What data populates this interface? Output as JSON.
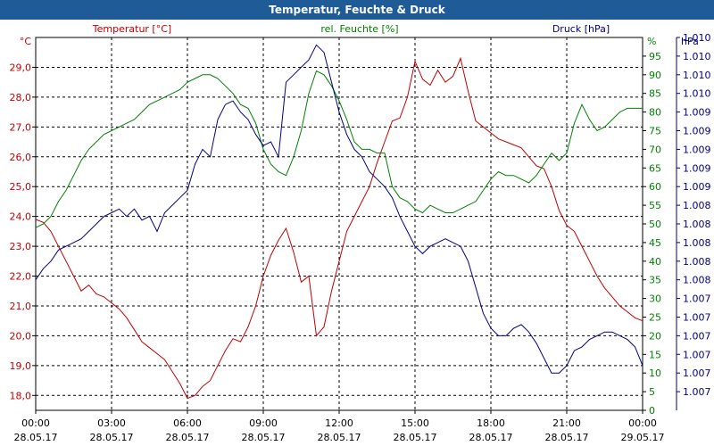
{
  "title": "Temperatur, Feuchte & Druck",
  "chart_data": {
    "type": "line",
    "title": "Temperatur, Feuchte & Druck",
    "x_ticks": [
      {
        "time": "00:00",
        "date": "28.05.17"
      },
      {
        "time": "03:00",
        "date": "28.05.17"
      },
      {
        "time": "06:00",
        "date": "28.05.17"
      },
      {
        "time": "09:00",
        "date": "28.05.17"
      },
      {
        "time": "12:00",
        "date": "28.05.17"
      },
      {
        "time": "15:00",
        "date": "28.05.17"
      },
      {
        "time": "18:00",
        "date": "28.05.17"
      },
      {
        "time": "21:00",
        "date": "28.05.17"
      },
      {
        "time": "00:00",
        "date": "29.05.17"
      }
    ],
    "x_range_hours": [
      0,
      24
    ],
    "axes": {
      "temperature": {
        "unit": "°C",
        "label": "Temperatur [°C]",
        "color": "#c00000",
        "range": [
          17.5,
          30.0
        ],
        "ticks": [
          "18,0",
          "19,0",
          "20,0",
          "21,0",
          "22,0",
          "23,0",
          "24,0",
          "25,0",
          "26,0",
          "27,0",
          "28,0",
          "29,0"
        ]
      },
      "humidity": {
        "unit": "%",
        "label": "rel. Feuchte [%]",
        "color": "#008000",
        "range": [
          0,
          100
        ],
        "ticks": [
          "0",
          "5",
          "10",
          "15",
          "20",
          "25",
          "30",
          "35",
          "40",
          "45",
          "50",
          "55",
          "60",
          "65",
          "70",
          "75",
          "80",
          "85",
          "90",
          "95"
        ]
      },
      "pressure": {
        "unit": "hPa",
        "label": "Druck [hPa]",
        "color": "#000080",
        "range": [
          0,
          100
        ],
        "ticks": [
          "1.007",
          "1.007",
          "1.007",
          "1.007",
          "1.007",
          "1.007",
          "1.008",
          "1.008",
          "1.008",
          "1.008",
          "1.008",
          "1.009",
          "1.009",
          "1.009",
          "1.009",
          "1.009",
          "1.010",
          "1.010",
          "1.010",
          "1.010"
        ]
      }
    },
    "grid": true,
    "series": [
      {
        "name": "Temperatur [°C]",
        "axis": "temperature",
        "color": "#c00000",
        "x": [
          0,
          0.3,
          0.6,
          0.9,
          1.2,
          1.5,
          1.8,
          2.1,
          2.4,
          2.7,
          3,
          3.3,
          3.6,
          3.9,
          4.2,
          4.5,
          4.8,
          5.1,
          5.4,
          5.7,
          6,
          6.3,
          6.6,
          6.9,
          7.2,
          7.5,
          7.8,
          8.1,
          8.4,
          8.7,
          9,
          9.3,
          9.6,
          9.9,
          10.2,
          10.5,
          10.8,
          11.1,
          11.4,
          11.7,
          12,
          12.3,
          12.6,
          12.9,
          13.2,
          13.5,
          13.8,
          14.1,
          14.4,
          14.7,
          15,
          15.3,
          15.6,
          15.9,
          16.2,
          16.5,
          16.8,
          17.1,
          17.4,
          17.7,
          18,
          18.3,
          18.6,
          18.9,
          19.2,
          19.5,
          19.8,
          20.1,
          20.4,
          20.7,
          21,
          21.3,
          21.6,
          21.9,
          22.2,
          22.5,
          22.8,
          23.1,
          23.4,
          23.7,
          24
        ],
        "y": [
          23.9,
          23.8,
          23.5,
          23.0,
          22.5,
          22.0,
          21.5,
          21.7,
          21.4,
          21.3,
          21.1,
          20.9,
          20.6,
          20.2,
          19.8,
          19.6,
          19.4,
          19.2,
          18.8,
          18.4,
          17.9,
          18.0,
          18.3,
          18.5,
          19.0,
          19.5,
          19.9,
          19.8,
          20.3,
          21.0,
          22.0,
          22.7,
          23.2,
          23.6,
          22.8,
          21.8,
          22.0,
          20.0,
          20.3,
          21.5,
          22.5,
          23.5,
          24.0,
          24.5,
          25.0,
          25.8,
          26.5,
          27.2,
          27.3,
          28.0,
          29.2,
          28.6,
          28.4,
          28.9,
          28.5,
          28.7,
          29.3,
          28.2,
          27.2,
          27.0,
          26.8,
          26.6,
          26.5,
          26.4,
          26.3,
          26.0,
          25.7,
          25.6,
          25.0,
          24.2,
          23.7,
          23.5,
          23.0,
          22.5,
          22.0,
          21.6,
          21.3,
          21.0,
          20.8,
          20.6,
          20.5
        ]
      },
      {
        "name": "rel. Feuchte [%]",
        "axis": "humidity",
        "color": "#008000",
        "x": [
          0,
          0.3,
          0.6,
          0.9,
          1.2,
          1.5,
          1.8,
          2.1,
          2.4,
          2.7,
          3,
          3.3,
          3.6,
          3.9,
          4.2,
          4.5,
          4.8,
          5.1,
          5.4,
          5.7,
          6,
          6.3,
          6.6,
          6.9,
          7.2,
          7.5,
          7.8,
          8.1,
          8.4,
          8.7,
          9,
          9.3,
          9.6,
          9.9,
          10.2,
          10.5,
          10.8,
          11.1,
          11.4,
          11.7,
          12,
          12.3,
          12.6,
          12.9,
          13.2,
          13.5,
          13.8,
          14.1,
          14.4,
          14.7,
          15,
          15.3,
          15.6,
          15.9,
          16.2,
          16.5,
          16.8,
          17.1,
          17.4,
          17.7,
          18,
          18.3,
          18.6,
          18.9,
          19.2,
          19.5,
          19.8,
          20.1,
          20.4,
          20.7,
          21,
          21.3,
          21.6,
          21.9,
          22.2,
          22.5,
          22.8,
          23.1,
          23.4,
          23.7,
          24
        ],
        "y": [
          49,
          50,
          52,
          56,
          59,
          63,
          67,
          70,
          72,
          74,
          75,
          76,
          77,
          78,
          80,
          82,
          83,
          84,
          85,
          86,
          88,
          89,
          90,
          90,
          89,
          87,
          85,
          82,
          81,
          77,
          70,
          66,
          64,
          63,
          68,
          75,
          85,
          91,
          90,
          87,
          83,
          78,
          72,
          70,
          70,
          69,
          69,
          60,
          57,
          56,
          54,
          53,
          55,
          54,
          53,
          53,
          54,
          55,
          56,
          59,
          62,
          64,
          63,
          63,
          62,
          61,
          63,
          66,
          69,
          67,
          69,
          77,
          82,
          78,
          75,
          76,
          78,
          80,
          81,
          81,
          81
        ]
      },
      {
        "name": "Druck [hPa]",
        "axis": "pressure",
        "color": "#000080",
        "x": [
          0,
          0.3,
          0.6,
          0.9,
          1.2,
          1.5,
          1.8,
          2.1,
          2.4,
          2.7,
          3,
          3.3,
          3.6,
          3.9,
          4.2,
          4.5,
          4.8,
          5.1,
          5.4,
          5.7,
          6,
          6.3,
          6.6,
          6.9,
          7.2,
          7.5,
          7.8,
          8.1,
          8.4,
          8.7,
          9,
          9.3,
          9.6,
          9.9,
          10.2,
          10.5,
          10.8,
          11.1,
          11.4,
          11.7,
          12,
          12.3,
          12.6,
          12.9,
          13.2,
          13.5,
          13.8,
          14.1,
          14.4,
          14.7,
          15,
          15.3,
          15.6,
          15.9,
          16.2,
          16.5,
          16.8,
          17.1,
          17.4,
          17.7,
          18,
          18.3,
          18.6,
          18.9,
          19.2,
          19.5,
          19.8,
          20.1,
          20.4,
          20.7,
          21,
          21.3,
          21.6,
          21.9,
          22.2,
          22.5,
          22.8,
          23.1,
          23.4,
          23.7,
          24
        ],
        "y": [
          35,
          38,
          40,
          43,
          44,
          45,
          46,
          48,
          50,
          52,
          53,
          54,
          52,
          54,
          51,
          52,
          48,
          53,
          55,
          57,
          59,
          66,
          70,
          68,
          78,
          82,
          83,
          80,
          78,
          74,
          71,
          72,
          68,
          88,
          90,
          92,
          94,
          98,
          96,
          88,
          80,
          74,
          70,
          68,
          64,
          62,
          60,
          57,
          52,
          48,
          44,
          42,
          44,
          45,
          46,
          45,
          44,
          40,
          33,
          26,
          22,
          20,
          20,
          22,
          23,
          21,
          18,
          14,
          10,
          10,
          12,
          16,
          17,
          19,
          20,
          21,
          21,
          20,
          19,
          17,
          12
        ]
      }
    ]
  }
}
